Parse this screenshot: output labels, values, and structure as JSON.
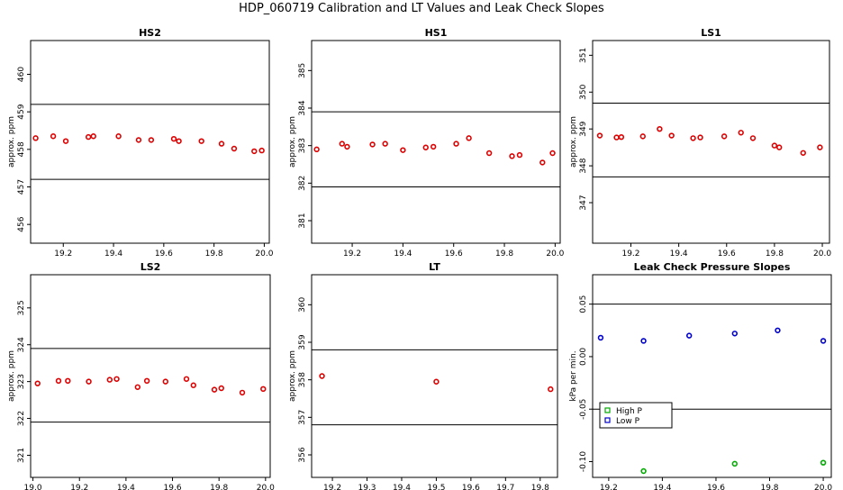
{
  "title": "HDP_060719  Calibration and LT Values and Leak Check Slopes",
  "chart_data": [
    {
      "type": "scatter",
      "title": "HS2",
      "ylabel": "approx. ppm",
      "xlim": [
        19.07,
        20.02
      ],
      "ylim": [
        455.5,
        460.9
      ],
      "xticks": [
        19.2,
        19.4,
        19.6,
        19.8,
        20.0
      ],
      "xtick_labels": [
        "19.2",
        "19.4",
        "19.6",
        "19.8",
        "20.0"
      ],
      "yticks": [
        456,
        457,
        458,
        459,
        460
      ],
      "ytick_labels": [
        "456",
        "457",
        "458",
        "459",
        "460"
      ],
      "hlines": [
        459.2,
        457.2
      ],
      "series": [
        {
          "color": "#dd0000",
          "x": [
            19.09,
            19.16,
            19.21,
            19.3,
            19.32,
            19.42,
            19.5,
            19.55,
            19.64,
            19.66,
            19.75,
            19.83,
            19.88,
            19.96,
            19.99
          ],
          "y": [
            458.3,
            458.35,
            458.22,
            458.33,
            458.35,
            458.35,
            458.25,
            458.25,
            458.28,
            458.22,
            458.22,
            458.15,
            458.02,
            457.95,
            457.97
          ]
        }
      ]
    },
    {
      "type": "scatter",
      "title": "HS1",
      "ylabel": "approx. ppm",
      "xlim": [
        19.04,
        20.02
      ],
      "ylim": [
        380.4,
        385.8
      ],
      "xticks": [
        19.2,
        19.4,
        19.6,
        19.8,
        20.0
      ],
      "xtick_labels": [
        "19.2",
        "19.4",
        "19.6",
        "19.8",
        "20.0"
      ],
      "yticks": [
        381,
        382,
        383,
        384,
        385
      ],
      "ytick_labels": [
        "381",
        "382",
        "383",
        "384",
        "385"
      ],
      "hlines": [
        383.9,
        381.9
      ],
      "series": [
        {
          "color": "#dd0000",
          "x": [
            19.06,
            19.16,
            19.18,
            19.28,
            19.33,
            19.4,
            19.49,
            19.52,
            19.61,
            19.66,
            19.74,
            19.83,
            19.86,
            19.95,
            19.99
          ],
          "y": [
            382.9,
            383.05,
            382.97,
            383.03,
            383.05,
            382.88,
            382.95,
            382.97,
            383.05,
            383.2,
            382.8,
            382.72,
            382.75,
            382.55,
            382.8
          ]
        }
      ]
    },
    {
      "type": "scatter",
      "title": "LS1",
      "ylabel": "approx. ppm",
      "xlim": [
        19.04,
        20.03
      ],
      "ylim": [
        345.9,
        351.4
      ],
      "xticks": [
        19.2,
        19.4,
        19.6,
        19.8,
        20.0
      ],
      "xtick_labels": [
        "19.2",
        "19.4",
        "19.6",
        "19.8",
        "20.0"
      ],
      "yticks": [
        347,
        348,
        349,
        350,
        351
      ],
      "ytick_labels": [
        "347",
        "348",
        "349",
        "350",
        "351"
      ],
      "hlines": [
        349.7,
        347.7
      ],
      "series": [
        {
          "color": "#dd0000",
          "x": [
            19.07,
            19.14,
            19.16,
            19.25,
            19.32,
            19.37,
            19.46,
            19.49,
            19.59,
            19.66,
            19.71,
            19.8,
            19.82,
            19.92,
            19.99
          ],
          "y": [
            348.82,
            348.77,
            348.78,
            348.8,
            349.0,
            348.82,
            348.75,
            348.77,
            348.8,
            348.9,
            348.75,
            348.55,
            348.5,
            348.35,
            348.5
          ]
        }
      ]
    },
    {
      "type": "scatter",
      "title": "LS2",
      "ylabel": "approx. ppm",
      "xlim": [
        18.99,
        20.02
      ],
      "ylim": [
        320.4,
        325.9
      ],
      "xticks": [
        19.0,
        19.2,
        19.4,
        19.6,
        19.8,
        20.0
      ],
      "xtick_labels": [
        "19.0",
        "19.2",
        "19.4",
        "19.6",
        "19.8",
        "20.0"
      ],
      "yticks": [
        321,
        322,
        323,
        324,
        325
      ],
      "ytick_labels": [
        "321",
        "322",
        "323",
        "324",
        "325"
      ],
      "hlines": [
        323.9,
        321.9
      ],
      "series": [
        {
          "color": "#dd0000",
          "x": [
            19.02,
            19.11,
            19.15,
            19.24,
            19.33,
            19.36,
            19.45,
            19.49,
            19.57,
            19.66,
            19.69,
            19.78,
            19.81,
            19.9,
            19.99
          ],
          "y": [
            322.95,
            323.02,
            323.02,
            323.0,
            323.05,
            323.07,
            322.85,
            323.02,
            323.0,
            323.07,
            322.9,
            322.78,
            322.82,
            322.7,
            322.8
          ]
        }
      ]
    },
    {
      "type": "scatter",
      "title": "LT",
      "ylabel": "approx. ppm",
      "xlim": [
        19.14,
        19.85
      ],
      "ylim": [
        355.4,
        360.8
      ],
      "xticks": [
        19.2,
        19.3,
        19.4,
        19.5,
        19.6,
        19.7,
        19.8
      ],
      "xtick_labels": [
        "19.2",
        "19.3",
        "19.4",
        "19.5",
        "19.6",
        "19.7",
        "19.8"
      ],
      "yticks": [
        356,
        357,
        358,
        359,
        360
      ],
      "ytick_labels": [
        "356",
        "357",
        "358",
        "359",
        "360"
      ],
      "hlines": [
        358.8,
        356.8
      ],
      "series": [
        {
          "color": "#dd0000",
          "x": [
            19.17,
            19.5,
            19.83
          ],
          "y": [
            358.1,
            357.95,
            357.75
          ]
        }
      ]
    },
    {
      "type": "scatter",
      "title": "Leak Check Pressure Slopes",
      "ylabel": "kPa per min.",
      "xlim": [
        19.14,
        20.03
      ],
      "ylim": [
        -0.115,
        0.078
      ],
      "xticks": [
        19.2,
        19.4,
        19.6,
        19.8,
        20.0
      ],
      "xtick_labels": [
        "19.2",
        "19.4",
        "19.6",
        "19.8",
        "20.0"
      ],
      "yticks": [
        -0.1,
        -0.05,
        0.0,
        0.05
      ],
      "ytick_labels": [
        "-0.10",
        "-0.05",
        "0.00",
        "0.05"
      ],
      "hlines": [
        0.05,
        -0.05
      ],
      "legend": {
        "position": "bottom-left",
        "entries": [
          {
            "label": "High P",
            "color": "#00aa00"
          },
          {
            "label": "Low P",
            "color": "#0000cc"
          }
        ]
      },
      "series": [
        {
          "name": "High P",
          "color": "#00aa00",
          "x": [
            19.33,
            19.67,
            20.0
          ],
          "y": [
            -0.109,
            -0.102,
            -0.101
          ]
        },
        {
          "name": "Low P",
          "color": "#0000cc",
          "x": [
            19.17,
            19.33,
            19.5,
            19.67,
            19.83,
            20.0
          ],
          "y": [
            0.018,
            0.015,
            0.02,
            0.022,
            0.025,
            0.015
          ]
        }
      ]
    }
  ]
}
